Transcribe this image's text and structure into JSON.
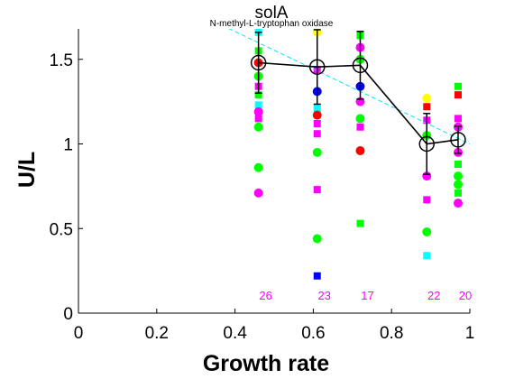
{
  "chart_data": {
    "type": "scatter",
    "title": "solA",
    "subtitle": "N-methyl-L-tryptophan oxidase",
    "xlabel": "Growth rate",
    "ylabel": "U/L",
    "xlim": [
      0,
      1
    ],
    "ylim": [
      0,
      1.68
    ],
    "x_ticks": [
      "0",
      "0.2",
      "0.4",
      "0.6",
      "0.8",
      "1"
    ],
    "y_ticks": [
      "0",
      "0.5",
      "1",
      "1.5"
    ],
    "colors": {
      "mean_line": "#000000",
      "fit_line": "#00e5ff",
      "count_text": "#ff00ff",
      "yellow": "#ffff00",
      "green": "#00ff00",
      "magenta": "#ff00ff",
      "red": "#ff0000",
      "blue": "#0000ff",
      "cyan": "#00ffff"
    },
    "means": [
      {
        "x": 0.46,
        "y": 1.48,
        "err": 0.18,
        "count": "26"
      },
      {
        "x": 0.61,
        "y": 1.455,
        "err": 0.22,
        "count": "23"
      },
      {
        "x": 0.72,
        "y": 1.465,
        "err": 0.2,
        "count": "17"
      },
      {
        "x": 0.89,
        "y": 1.0,
        "err": 0.18,
        "count": "22"
      },
      {
        "x": 0.97,
        "y": 1.025,
        "err": 0.08,
        "count": "20"
      }
    ],
    "fit_line": {
      "x": [
        0.35,
        1.0
      ],
      "y": [
        1.72,
        1.0
      ]
    },
    "points": [
      {
        "x": 0.46,
        "y": 1.66,
        "shape": "square",
        "color": "cyan"
      },
      {
        "x": 0.46,
        "y": 1.55,
        "shape": "square",
        "color": "green"
      },
      {
        "x": 0.46,
        "y": 1.48,
        "shape": "circle",
        "color": "red"
      },
      {
        "x": 0.46,
        "y": 1.4,
        "shape": "circle",
        "color": "green"
      },
      {
        "x": 0.46,
        "y": 1.34,
        "shape": "square",
        "color": "magenta"
      },
      {
        "x": 0.46,
        "y": 1.29,
        "shape": "square",
        "color": "green"
      },
      {
        "x": 0.46,
        "y": 1.23,
        "shape": "square",
        "color": "cyan"
      },
      {
        "x": 0.46,
        "y": 1.19,
        "shape": "circle",
        "color": "magenta"
      },
      {
        "x": 0.46,
        "y": 1.15,
        "shape": "square",
        "color": "magenta"
      },
      {
        "x": 0.46,
        "y": 1.1,
        "shape": "circle",
        "color": "green"
      },
      {
        "x": 0.46,
        "y": 0.86,
        "shape": "circle",
        "color": "green"
      },
      {
        "x": 0.46,
        "y": 0.71,
        "shape": "circle",
        "color": "magenta"
      },
      {
        "x": 0.61,
        "y": 1.66,
        "shape": "circle",
        "color": "yellow"
      },
      {
        "x": 0.61,
        "y": 1.44,
        "shape": "square",
        "color": "magenta"
      },
      {
        "x": 0.61,
        "y": 1.31,
        "shape": "circle",
        "color": "blue"
      },
      {
        "x": 0.61,
        "y": 1.21,
        "shape": "square",
        "color": "cyan"
      },
      {
        "x": 0.61,
        "y": 1.17,
        "shape": "circle",
        "color": "red"
      },
      {
        "x": 0.61,
        "y": 1.12,
        "shape": "square",
        "color": "magenta"
      },
      {
        "x": 0.61,
        "y": 1.06,
        "shape": "square",
        "color": "magenta"
      },
      {
        "x": 0.61,
        "y": 0.95,
        "shape": "circle",
        "color": "green"
      },
      {
        "x": 0.61,
        "y": 0.73,
        "shape": "square",
        "color": "magenta"
      },
      {
        "x": 0.61,
        "y": 0.44,
        "shape": "circle",
        "color": "green"
      },
      {
        "x": 0.61,
        "y": 0.22,
        "shape": "square",
        "color": "blue"
      },
      {
        "x": 0.72,
        "y": 1.64,
        "shape": "square",
        "color": "green"
      },
      {
        "x": 0.72,
        "y": 1.57,
        "shape": "circle",
        "color": "magenta"
      },
      {
        "x": 0.72,
        "y": 1.5,
        "shape": "circle",
        "color": "green"
      },
      {
        "x": 0.72,
        "y": 1.34,
        "shape": "circle",
        "color": "blue"
      },
      {
        "x": 0.72,
        "y": 1.25,
        "shape": "circle",
        "color": "magenta"
      },
      {
        "x": 0.72,
        "y": 1.15,
        "shape": "circle",
        "color": "green"
      },
      {
        "x": 0.72,
        "y": 1.1,
        "shape": "square",
        "color": "magenta"
      },
      {
        "x": 0.72,
        "y": 0.96,
        "shape": "circle",
        "color": "red"
      },
      {
        "x": 0.72,
        "y": 0.53,
        "shape": "square",
        "color": "green"
      },
      {
        "x": 0.89,
        "y": 1.27,
        "shape": "circle",
        "color": "yellow"
      },
      {
        "x": 0.89,
        "y": 1.22,
        "shape": "square",
        "color": "red"
      },
      {
        "x": 0.89,
        "y": 1.14,
        "shape": "square",
        "color": "magenta"
      },
      {
        "x": 0.89,
        "y": 1.05,
        "shape": "circle",
        "color": "green"
      },
      {
        "x": 0.89,
        "y": 0.81,
        "shape": "circle",
        "color": "magenta"
      },
      {
        "x": 0.89,
        "y": 0.67,
        "shape": "square",
        "color": "magenta"
      },
      {
        "x": 0.89,
        "y": 0.48,
        "shape": "circle",
        "color": "green"
      },
      {
        "x": 0.89,
        "y": 0.34,
        "shape": "square",
        "color": "cyan"
      },
      {
        "x": 0.97,
        "y": 1.34,
        "shape": "square",
        "color": "green"
      },
      {
        "x": 0.97,
        "y": 1.29,
        "shape": "square",
        "color": "red"
      },
      {
        "x": 0.97,
        "y": 1.15,
        "shape": "square",
        "color": "magenta"
      },
      {
        "x": 0.97,
        "y": 1.1,
        "shape": "circle",
        "color": "magenta"
      },
      {
        "x": 0.97,
        "y": 0.95,
        "shape": "circle",
        "color": "magenta"
      },
      {
        "x": 0.97,
        "y": 0.88,
        "shape": "square",
        "color": "green"
      },
      {
        "x": 0.97,
        "y": 0.81,
        "shape": "circle",
        "color": "green"
      },
      {
        "x": 0.97,
        "y": 0.76,
        "shape": "circle",
        "color": "green"
      },
      {
        "x": 0.97,
        "y": 0.71,
        "shape": "square",
        "color": "green"
      },
      {
        "x": 0.97,
        "y": 0.65,
        "shape": "circle",
        "color": "magenta"
      }
    ]
  }
}
